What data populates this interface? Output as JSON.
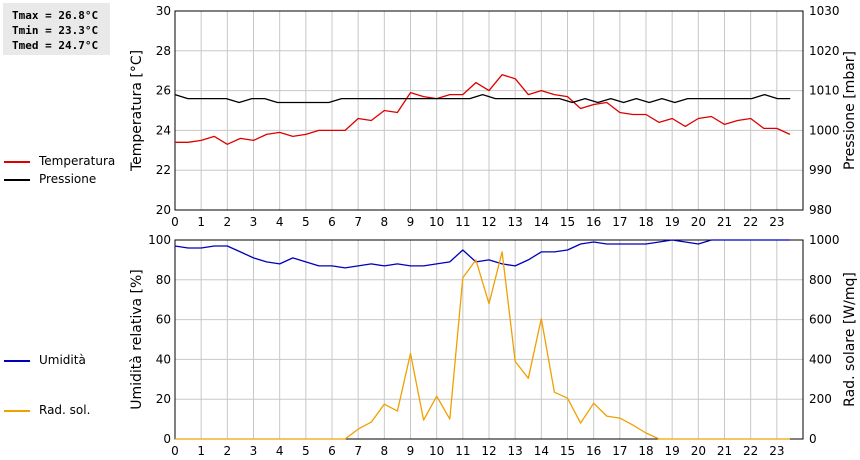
{
  "stats": {
    "tmax": "Tmax = 26.8°C",
    "tmin": "Tmin = 23.3°C",
    "tmed": "Tmed = 24.7°C"
  },
  "legend_top": [
    {
      "label": "Temperatura",
      "color": "#dd0000"
    },
    {
      "label": "Pressione",
      "color": "#000000"
    }
  ],
  "legend_bottom": [
    {
      "label": "Umidità",
      "color": "#0000bb"
    },
    {
      "label": "Rad. sol.",
      "color": "#f0a000"
    }
  ],
  "chart_data": [
    {
      "type": "line",
      "x_ticks": [
        0,
        1,
        2,
        3,
        4,
        5,
        6,
        7,
        8,
        9,
        10,
        11,
        12,
        13,
        14,
        15,
        16,
        17,
        18,
        19,
        20,
        21,
        22,
        23
      ],
      "xlim": [
        0,
        24
      ],
      "left_axis": {
        "label": "Temperatura [°C]",
        "ylim": [
          20,
          30
        ],
        "ticks": [
          20,
          22,
          24,
          26,
          28,
          30
        ]
      },
      "right_axis": {
        "label": "Pressione [mbar]",
        "ylim": [
          980,
          1030
        ],
        "ticks": [
          980,
          990,
          1000,
          1010,
          1020,
          1030
        ]
      },
      "grid": true,
      "series": [
        {
          "name": "Temperatura",
          "axis": "left",
          "color": "#dd0000",
          "values": [
            23.4,
            23.4,
            23.5,
            23.7,
            23.3,
            23.6,
            23.5,
            23.8,
            23.9,
            23.7,
            23.8,
            24.0,
            24.0,
            24.0,
            24.6,
            24.5,
            25.0,
            24.9,
            25.9,
            25.7,
            25.6,
            25.8,
            25.8,
            26.4,
            26.0,
            26.8,
            26.6,
            25.8,
            26.0,
            25.8,
            25.7,
            25.1,
            25.3,
            25.4,
            24.9,
            24.8,
            24.8,
            24.4,
            24.6,
            24.2,
            24.6,
            24.7,
            24.3,
            24.5,
            24.6,
            24.1,
            24.1,
            23.8
          ]
        },
        {
          "name": "Pressione",
          "axis": "right",
          "color": "#000000",
          "values": [
            1009,
            1008,
            1008,
            1008,
            1008,
            1007,
            1008,
            1008,
            1007,
            1007,
            1007,
            1007,
            1007,
            1008,
            1008,
            1008,
            1008,
            1008,
            1008,
            1008,
            1008,
            1008,
            1008,
            1008,
            1009,
            1008,
            1008,
            1008,
            1008,
            1008,
            1008,
            1007,
            1008,
            1007,
            1008,
            1007,
            1008,
            1007,
            1008,
            1007,
            1008,
            1008,
            1008,
            1008,
            1008,
            1008,
            1009,
            1008,
            1008
          ]
        }
      ]
    },
    {
      "type": "line",
      "x_ticks": [
        0,
        1,
        2,
        3,
        4,
        5,
        6,
        7,
        8,
        9,
        10,
        11,
        12,
        13,
        14,
        15,
        16,
        17,
        18,
        19,
        20,
        21,
        22,
        23
      ],
      "xlim": [
        0,
        24
      ],
      "left_axis": {
        "label": "Umidità relativa [%]",
        "ylim": [
          0,
          100
        ],
        "ticks": [
          0,
          20,
          40,
          60,
          80,
          100
        ]
      },
      "right_axis": {
        "label": "Rad. solare [W/mq]",
        "ylim": [
          0,
          1000
        ],
        "ticks": [
          0,
          200,
          400,
          600,
          800,
          1000
        ]
      },
      "grid": true,
      "series": [
        {
          "name": "Umidità",
          "axis": "left",
          "color": "#0000bb",
          "values": [
            97,
            96,
            96,
            97,
            97,
            94,
            91,
            89,
            88,
            91,
            89,
            87,
            87,
            86,
            87,
            88,
            87,
            88,
            87,
            87,
            88,
            89,
            95,
            89,
            90,
            88,
            87,
            90,
            94,
            94,
            95,
            98,
            99,
            98,
            98,
            98,
            98,
            99,
            100,
            99,
            98,
            100,
            100,
            100,
            100,
            100,
            100,
            100
          ]
        },
        {
          "name": "Rad. sol.",
          "axis": "right",
          "color": "#f0a000",
          "values": [
            0,
            0,
            0,
            0,
            0,
            0,
            0,
            0,
            0,
            0,
            0,
            0,
            0,
            0,
            50,
            85,
            175,
            140,
            430,
            95,
            215,
            100,
            810,
            900,
            680,
            940,
            390,
            305,
            605,
            235,
            205,
            80,
            180,
            115,
            105,
            70,
            30,
            0,
            0,
            0,
            0,
            0,
            0,
            0,
            0,
            0,
            0,
            0
          ]
        }
      ]
    }
  ]
}
